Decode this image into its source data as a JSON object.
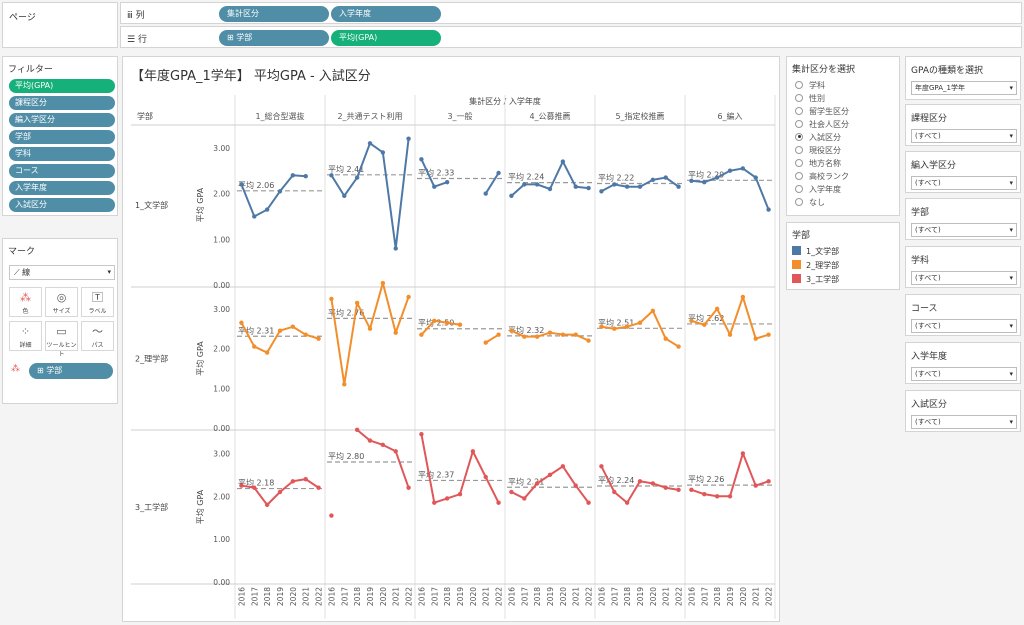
{
  "shelves": {
    "pages_label": "ページ",
    "columns_label": "列",
    "rows_label": "行",
    "columns_pills": [
      "集計区分",
      "入学年度"
    ],
    "rows_pills": [
      "⊞ 学部",
      "平均(GPA)"
    ]
  },
  "filters": {
    "title": "フィルター",
    "items": [
      "平均(GPA)",
      "課程区分",
      "編入学区分",
      "学部",
      "学科",
      "コース",
      "入学年度",
      "入試区分"
    ]
  },
  "marks": {
    "title": "マーク",
    "type": "線",
    "buttons": [
      "色",
      "サイズ",
      "ラベル",
      "詳細",
      "ツールヒント",
      "パス"
    ],
    "color_pill": "⊞ 学部"
  },
  "view": {
    "title": "【年度GPA_1学年】 平均GPA - 入試区分",
    "row_header": "学部",
    "col_super_header": "集計区分 / 入学年度",
    "y_axis_label": "平均 GPA",
    "avg_prefix": "平均"
  },
  "chart_data": {
    "type": "line",
    "title": "【年度GPA_1学年】 平均GPA - 入試区分",
    "xlabel": "集計区分 / 入学年度",
    "ylabel": "平均 GPA",
    "ylim": [
      0,
      3.5
    ],
    "yticks": [
      "0.00",
      "1.00",
      "2.00",
      "3.00"
    ],
    "years": [
      "2016",
      "2017",
      "2018",
      "2019",
      "2020",
      "2021",
      "2022"
    ],
    "columns": [
      "1_総合型選抜",
      "2_共通テスト利用",
      "3_一般",
      "4_公募推薦",
      "5_指定校推薦",
      "6_編入"
    ],
    "rows": [
      {
        "name": "1_文学部",
        "color": "#4e79a7",
        "averages": [
          2.06,
          2.41,
          2.33,
          2.24,
          2.22,
          2.29
        ],
        "values": [
          [
            2.2,
            1.5,
            1.65,
            2.05,
            2.4,
            2.38,
            null
          ],
          [
            2.4,
            1.95,
            2.35,
            3.1,
            2.9,
            0.8,
            3.2
          ],
          [
            2.75,
            2.15,
            2.25,
            null,
            null,
            2.0,
            2.45
          ],
          [
            1.95,
            2.2,
            2.2,
            2.1,
            2.7,
            2.15,
            2.12
          ],
          [
            2.05,
            2.2,
            2.15,
            2.15,
            2.3,
            2.35,
            2.15
          ],
          [
            2.28,
            2.25,
            2.35,
            2.5,
            2.55,
            2.35,
            1.65
          ]
        ]
      },
      {
        "name": "2_理学部",
        "color": "#f28e2b",
        "averages": [
          2.31,
          2.76,
          2.5,
          2.32,
          2.51,
          2.62
        ],
        "values": [
          [
            2.65,
            2.05,
            1.9,
            2.45,
            2.55,
            2.35,
            2.25
          ],
          [
            3.25,
            1.1,
            3.15,
            2.5,
            3.65,
            2.4,
            3.3
          ],
          [
            2.35,
            2.7,
            2.65,
            2.6,
            null,
            2.15,
            2.35
          ],
          [
            2.45,
            2.3,
            2.3,
            2.4,
            2.35,
            2.35,
            2.2
          ],
          [
            2.55,
            2.5,
            2.55,
            2.65,
            2.95,
            2.25,
            2.05
          ],
          [
            2.7,
            2.6,
            3.0,
            2.35,
            3.3,
            2.25,
            2.35
          ]
        ]
      },
      {
        "name": "3_工学部",
        "color": "#e15759",
        "averages": [
          2.18,
          2.8,
          2.37,
          2.21,
          2.24,
          2.26
        ],
        "values": [
          [
            2.25,
            2.2,
            1.8,
            2.1,
            2.35,
            2.4,
            2.2
          ],
          [
            1.55,
            null,
            3.55,
            3.3,
            3.2,
            3.05,
            2.2
          ],
          [
            3.45,
            1.85,
            1.95,
            2.05,
            3.05,
            2.45,
            1.85
          ],
          [
            2.1,
            1.95,
            2.3,
            2.5,
            2.7,
            2.25,
            1.85
          ],
          [
            2.7,
            2.1,
            1.85,
            2.35,
            2.3,
            2.2,
            2.15
          ],
          [
            2.15,
            2.05,
            2.0,
            2.0,
            3.0,
            2.25,
            2.35
          ]
        ]
      }
    ]
  },
  "parameter": {
    "title": "集計区分を選択",
    "options": [
      "学科",
      "性別",
      "留学生区分",
      "社会人区分",
      "入試区分",
      "現役区分",
      "地方名称",
      "高校ランク",
      "入学年度",
      "なし"
    ],
    "selected_index": 4
  },
  "legend": {
    "title": "学部",
    "items": [
      "1_文学部",
      "2_理学部",
      "3_工学部"
    ],
    "colors": [
      "#4e79a7",
      "#f28e2b",
      "#e15759"
    ]
  },
  "right_filters": [
    {
      "title": "GPAの種類を選択",
      "value": "年度GPA_1学年"
    },
    {
      "title": "課程区分",
      "value": "(すべて)"
    },
    {
      "title": "編入学区分",
      "value": "(すべて)"
    },
    {
      "title": "学部",
      "value": "(すべて)"
    },
    {
      "title": "学科",
      "value": "(すべて)"
    },
    {
      "title": "コース",
      "value": "(すべて)"
    },
    {
      "title": "入学年度",
      "value": "(すべて)"
    },
    {
      "title": "入試区分",
      "value": "(すべて)"
    }
  ]
}
